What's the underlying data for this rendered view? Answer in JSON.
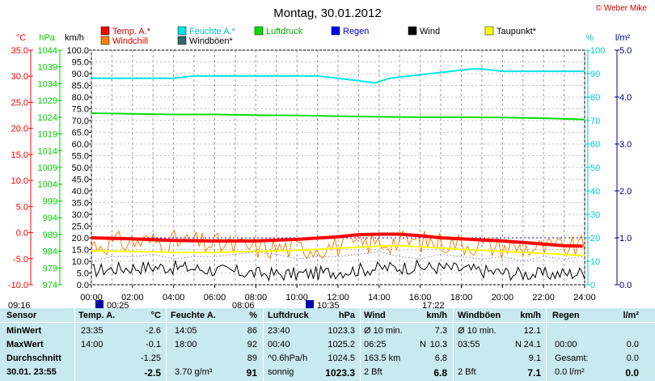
{
  "header": {
    "copyright": "© Weber Mike"
  },
  "chart_data": {
    "type": "line",
    "title": "Montag, 30.01.2012",
    "x_ticks": [
      "00:00",
      "02:00",
      "04:00",
      "06:00",
      "08:00",
      "10:00",
      "12:00",
      "14:00",
      "16:00",
      "18:00",
      "20:00",
      "22:00",
      "24:00"
    ],
    "x_range": [
      0,
      24
    ],
    "axes": {
      "temp": {
        "label": "°C",
        "color": "#ff0000",
        "range": [
          -10,
          35
        ],
        "ticks": [
          "35.0",
          "30.0",
          "25.0",
          "20.0",
          "15.0",
          "10.0",
          "5.0",
          "0.0",
          "-5.0",
          "-10.0"
        ]
      },
      "pressure": {
        "label": "hPa",
        "color": "#00cc00",
        "range": [
          974,
          1044
        ],
        "ticks": [
          "1044",
          "1039",
          "1034",
          "1029",
          "1024",
          "1019",
          "1014",
          "1009",
          "1004",
          "999",
          "994",
          "989",
          "984",
          "979",
          "974"
        ]
      },
      "wind": {
        "label": "km/h",
        "color": "#000000",
        "range": [
          0,
          100
        ],
        "ticks": [
          "100.0",
          "95.0",
          "90.0",
          "85.0",
          "80.0",
          "75.0",
          "70.0",
          "65.0",
          "60.0",
          "55.0",
          "50.0",
          "45.0",
          "40.0",
          "35.0",
          "30.0",
          "25.0",
          "20.0",
          "15.0",
          "10.0",
          "5.0",
          "0.0"
        ]
      },
      "humidity": {
        "label": "%",
        "color": "#00cccc",
        "range": [
          0,
          100
        ],
        "ticks": [
          "100",
          "90",
          "80",
          "70",
          "60",
          "50",
          "40",
          "30",
          "20",
          "10",
          "0"
        ]
      },
      "rain": {
        "label": "l/m²",
        "color": "#000080",
        "range": [
          0,
          5
        ],
        "ticks": [
          "5.0",
          "4.0",
          "3.0",
          "2.0",
          "1.0",
          "0.0"
        ]
      }
    },
    "legend": [
      {
        "name": "Temp. A.*",
        "color": "#ff0000"
      },
      {
        "name": "Feuchte A.*",
        "color": "#00e5e5"
      },
      {
        "name": "Luftdruck",
        "color": "#00dd00"
      },
      {
        "name": "Regen",
        "color": "#0000ff"
      },
      {
        "name": "Wind",
        "color": "#000000"
      },
      {
        "name": "Taupunkt*",
        "color": "#ffff00"
      },
      {
        "name": "Windchill",
        "color": "#ff8000"
      },
      {
        "name": "Windböen*",
        "color": "#336666"
      }
    ],
    "series": [
      {
        "key": "humidity",
        "axis": "humidity",
        "color": "#00e5e5",
        "width": 2,
        "x": [
          0,
          1,
          2,
          3,
          4,
          5,
          6,
          7,
          8,
          9,
          10,
          11,
          12,
          13,
          13.8,
          14.5,
          15.5,
          16.5,
          17.5,
          18.5,
          19,
          20,
          21,
          22,
          23,
          24
        ],
        "y": [
          88,
          88,
          88,
          88,
          88,
          89,
          89,
          89,
          89,
          89,
          89,
          89,
          88,
          87,
          86,
          88,
          89,
          90,
          91,
          92,
          92,
          91,
          91,
          91,
          91,
          91
        ]
      },
      {
        "key": "pressure",
        "axis": "pressure",
        "color": "#00dd00",
        "width": 2,
        "x": [
          0,
          2,
          4,
          6,
          8,
          10,
          12,
          14,
          16,
          18,
          20,
          22,
          23,
          24
        ],
        "y": [
          1025.2,
          1025.0,
          1024.8,
          1024.8,
          1024.6,
          1024.5,
          1024.3,
          1024.1,
          1024.0,
          1024.0,
          1023.9,
          1023.7,
          1023.5,
          1023.3
        ]
      },
      {
        "key": "temp",
        "axis": "temp",
        "color": "#ff0000",
        "width": 4,
        "x": [
          0,
          2,
          4,
          6,
          8,
          10,
          12,
          13,
          14,
          15,
          16,
          17,
          18,
          19,
          20,
          21,
          22,
          23,
          23.9
        ],
        "y": [
          -1.0,
          -1.2,
          -1.5,
          -1.6,
          -1.6,
          -1.3,
          -0.8,
          -0.4,
          -0.3,
          -0.3,
          -0.6,
          -1.0,
          -1.2,
          -1.4,
          -1.6,
          -1.9,
          -2.2,
          -2.5,
          -2.6
        ]
      },
      {
        "key": "dewpoint",
        "axis": "temp",
        "color": "#ffff00",
        "width": 2,
        "x": [
          0,
          2,
          4,
          6,
          8,
          10,
          12,
          14,
          15,
          16,
          18,
          20,
          22,
          24
        ],
        "y": [
          -3.5,
          -3.6,
          -3.8,
          -3.8,
          -3.6,
          -3.4,
          -3.0,
          -2.6,
          -2.5,
          -2.7,
          -3.2,
          -3.6,
          -4.0,
          -4.4
        ]
      },
      {
        "key": "gust",
        "axis": "wind",
        "color": "#9999bb",
        "width": 1,
        "dash": "2,2",
        "x": [
          0,
          1,
          2,
          3,
          4,
          5,
          6,
          7,
          8,
          9,
          10,
          11,
          12,
          13,
          14,
          15,
          16,
          17,
          18,
          19,
          20,
          21,
          22,
          23,
          24
        ],
        "y": [
          10,
          12,
          12,
          13,
          11,
          12,
          12,
          13,
          14,
          13,
          11,
          12,
          12,
          13,
          14,
          12,
          11,
          13,
          12,
          11,
          12,
          10,
          12,
          11,
          12
        ]
      }
    ],
    "windchill_noisy": {
      "axis": "wind",
      "color": "#ff8000",
      "n": 160,
      "base": 17,
      "amp": 5
    },
    "wind_noisy": {
      "axis": "wind",
      "color": "#000000",
      "n": 200,
      "base": 6,
      "amp": 3
    },
    "markers_top": [
      "09:16",
      "00:25",
      "08:06",
      "10:35",
      "17:22"
    ],
    "dotted_ref": {
      "axis": "wind",
      "y": 20
    }
  },
  "table": {
    "headers": {
      "sensor": "Sensor",
      "temp": "Temp. A.",
      "temp_unit": "°C",
      "feuchte": "Feuchte A.",
      "feuchte_unit": "%",
      "luft": "Luftdruck",
      "luft_unit": "hPa",
      "wind": "Wind",
      "wind_unit": "km/h",
      "boen": "Windböen",
      "boen_unit": "km/h",
      "regen": "Regen",
      "regen_unit": "l/m²"
    },
    "rows": [
      {
        "label": "MinWert",
        "t_time": "23:35",
        "t_val": "-2.6",
        "f_time": "14:05",
        "f_val": "86",
        "l_time": "23:40",
        "l_val": "1023.3",
        "w_desc": "Ø 10 min.",
        "w_val": "7.3",
        "b_desc": "Ø 10 min.",
        "b_val": "12.1",
        "r_desc": "",
        "r_val": ""
      },
      {
        "label": "MaxWert",
        "t_time": "14:00",
        "t_val": "-0.1",
        "f_time": "18:00",
        "f_val": "92",
        "l_time": "00:40",
        "l_val": "1025.2",
        "w_desc": "06:25",
        "w_extra": "N",
        "w_val": "10.3",
        "b_desc": "03:55",
        "b_extra": "N",
        "b_val": "24.1",
        "r_desc": "00:00",
        "r_val": "0.0"
      },
      {
        "label": "Durchschnitt",
        "t_time": "",
        "t_val": "-1.25",
        "f_time": "",
        "f_val": "89",
        "l_time": "^0.6hPa/h",
        "l_val": "1024.5",
        "w_desc": "163.5 km",
        "w_val": "6.8",
        "b_desc": "",
        "b_val": "9.1",
        "r_desc": "Gesamt:",
        "r_val": "0.0"
      },
      {
        "label": "30.01. 23:55",
        "t_time": "",
        "t_val": "-2.5",
        "f_time": "3.70 g/m³",
        "f_val": "91",
        "l_time": "sonnig",
        "l_val": "1023.3",
        "w_desc": "2 Bft",
        "w_val": "6.8",
        "b_desc": "2 Bft",
        "b_val": "7.1",
        "r_desc": "0.0 l/m²",
        "r_val": "0.0"
      }
    ]
  }
}
